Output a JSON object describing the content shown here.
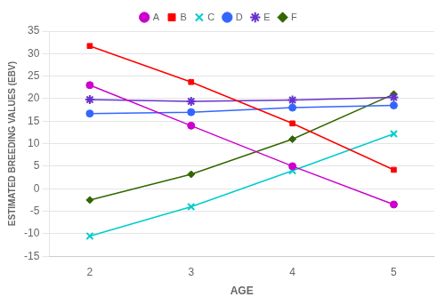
{
  "chart_data": {
    "type": "line",
    "xlabel": "AGE",
    "ylabel": "ESTIMATED BREEDING VALUES (EBV)",
    "x": [
      2,
      3,
      4,
      5
    ],
    "series": [
      {
        "name": "A",
        "color": "#cc00cc",
        "marker": "circle",
        "values": [
          23.0,
          14.0,
          5.0,
          -3.5
        ]
      },
      {
        "name": "B",
        "color": "#ff0000",
        "marker": "square",
        "values": [
          31.7,
          23.7,
          14.5,
          4.2
        ]
      },
      {
        "name": "C",
        "color": "#00cccc",
        "marker": "x",
        "values": [
          -10.5,
          -4.0,
          4.0,
          12.2
        ]
      },
      {
        "name": "D",
        "color": "#3366ff",
        "marker": "circle",
        "values": [
          16.7,
          17.0,
          18.0,
          18.5
        ]
      },
      {
        "name": "E",
        "color": "#6633cc",
        "marker": "star",
        "values": [
          19.8,
          19.4,
          19.7,
          20.3
        ]
      },
      {
        "name": "F",
        "color": "#336600",
        "marker": "diamond",
        "values": [
          -2.5,
          3.2,
          11.0,
          21.0
        ]
      }
    ],
    "xlim": [
      1.6,
      5.4
    ],
    "xticks": [
      2,
      3,
      4,
      5
    ],
    "ylim": [
      -15,
      35
    ],
    "yticks": [
      -15,
      -10,
      -5,
      0,
      5,
      10,
      15,
      20,
      25,
      30,
      35
    ],
    "grid": "y",
    "legend": "top"
  }
}
